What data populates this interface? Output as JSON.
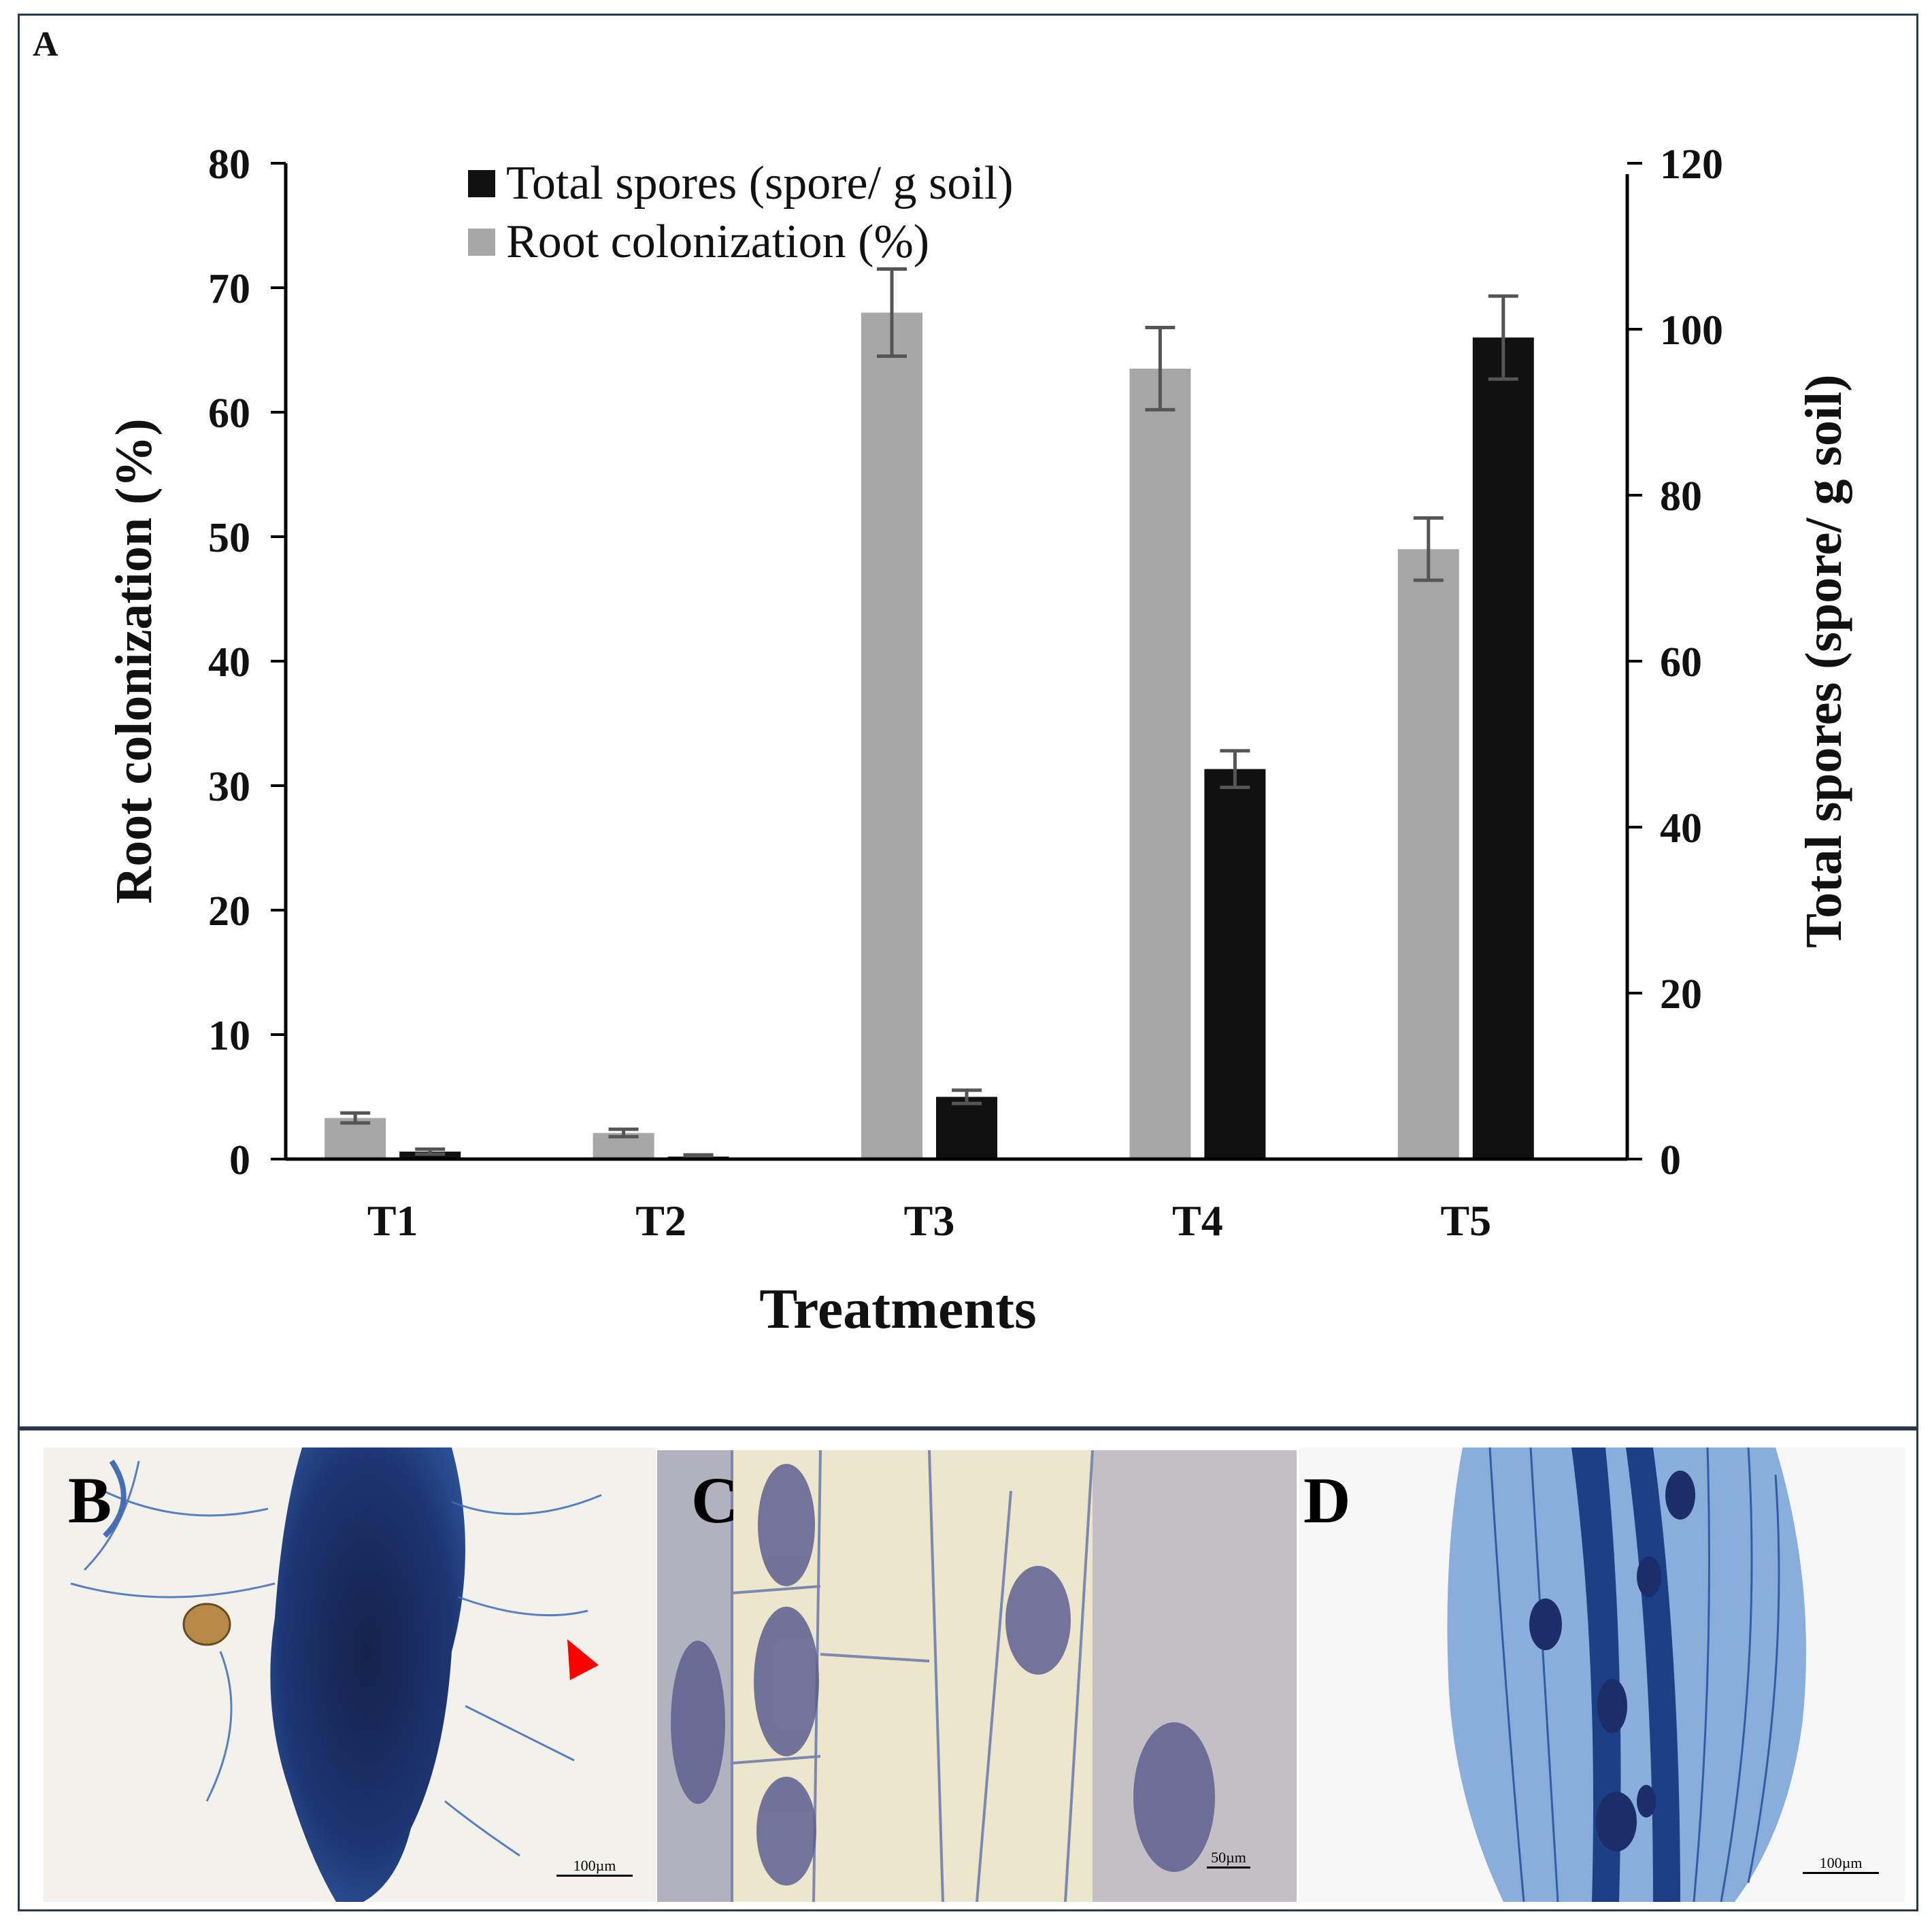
{
  "panels": {
    "a": "A",
    "b": "B",
    "c": "C",
    "d": "D"
  },
  "scale_bars": {
    "b": "100µm",
    "c": "50µm",
    "d": "100µm"
  },
  "chart_data": {
    "type": "bar",
    "categories": [
      "T1",
      "T2",
      "T3",
      "T4",
      "T5"
    ],
    "xlabel": "Treatments",
    "ylabel_left": "Root colonization (%)",
    "ylabel_right": "Total spores (spore/ g soil)",
    "ylim_left": [
      0,
      80
    ],
    "ylim_right": [
      0,
      120
    ],
    "yticks_left": [
      0,
      10,
      20,
      30,
      40,
      50,
      60,
      70,
      80
    ],
    "yticks_right": [
      0,
      20,
      40,
      60,
      80,
      100,
      120
    ],
    "legend_position": "top-left",
    "series": [
      {
        "name": "Root colonization (%)",
        "axis": "left",
        "color": "#a7a7a7",
        "values": [
          3.3,
          2.1,
          68.0,
          63.5,
          49.0
        ],
        "errors": [
          0.4,
          0.3,
          3.5,
          3.3,
          2.5
        ]
      },
      {
        "name": "Total spores (spore/ g soil)",
        "axis": "right",
        "color": "#111111",
        "values": [
          0.9,
          0.3,
          7.5,
          47.0,
          99.0
        ],
        "errors": [
          0.3,
          0.2,
          0.8,
          2.2,
          5.0
        ]
      }
    ]
  }
}
